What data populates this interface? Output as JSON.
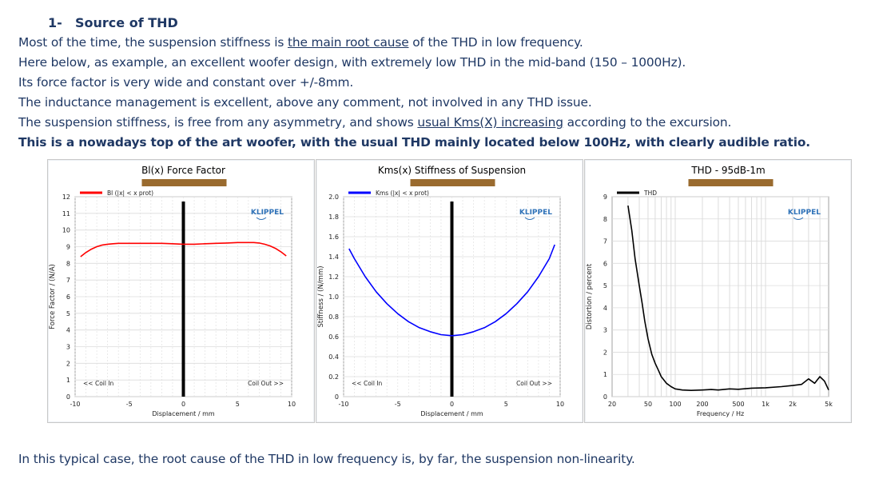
{
  "heading": {
    "number": "1-",
    "title": "Source of THD"
  },
  "paragraphs": {
    "p1_a": "Most of the time, the suspension stiffness is ",
    "p1_u": "the main root cause",
    "p1_b": " of the THD in low frequency.",
    "p2": "Here below, as example, an excellent woofer design, with extremely low THD in the mid-band (150 – 1000Hz).",
    "p3": "Its force factor is very wide and constant over +/-8mm.",
    "p4": "The inductance management is excellent, above any comment, not involved in any THD issue.",
    "p5_a": "The suspension stiffness, is free from any asymmetry, and shows ",
    "p5_u": "usual Kms(X) increasing",
    "p5_b": " according to the excursion.",
    "p6": "This is a nowadays top of the art woofer, with the usual THD mainly located below 100Hz, with clearly audible ratio."
  },
  "conclusion": "In this typical case, the root cause of the THD in low frequency is, by far, the suspension non-linearity.",
  "colors": {
    "text": "#1f3864",
    "bl": "#ff0000",
    "kms": "#0000ff",
    "thd": "#000000",
    "klippel": "#2f72b8",
    "redaction": "#9a6b2f"
  },
  "chart_data": [
    {
      "type": "line",
      "title": "Bl(x) Force Factor",
      "xlabel": "Displacement / mm",
      "ylabel": "Force Factor / (N/A)",
      "xlim": [
        -10,
        10
      ],
      "ylim": [
        0,
        12
      ],
      "xticks": [
        "-10",
        "-5",
        "0",
        "5",
        "10"
      ],
      "yticks": [
        "0",
        "1",
        "2",
        "3",
        "4",
        "5",
        "6",
        "7",
        "8",
        "9",
        "10",
        "11",
        "12"
      ],
      "brand": "KLIPPEL",
      "coil_in": "<< Coil In",
      "coil_out": "Coil Out >>",
      "series": [
        {
          "name": "Bl (|x| < x prot)",
          "x": [
            -9.5,
            -9,
            -8.5,
            -8,
            -7.5,
            -7,
            -6.5,
            -6,
            -5,
            -4,
            -3,
            -2,
            -1,
            0,
            1,
            2,
            3,
            4,
            5,
            6,
            6.5,
            7,
            7.5,
            8,
            8.5,
            9,
            9.5
          ],
          "y": [
            8.4,
            8.65,
            8.85,
            9.0,
            9.1,
            9.15,
            9.18,
            9.2,
            9.2,
            9.2,
            9.2,
            9.2,
            9.18,
            9.15,
            9.15,
            9.18,
            9.2,
            9.22,
            9.25,
            9.25,
            9.25,
            9.22,
            9.15,
            9.05,
            8.9,
            8.7,
            8.45
          ]
        }
      ]
    },
    {
      "type": "line",
      "title": "Kms(x) Stiffness of Suspension",
      "xlabel": "Displacement / mm",
      "ylabel": "Stiffness / (N/mm)",
      "xlim": [
        -10,
        10
      ],
      "ylim": [
        0,
        2.0
      ],
      "xticks": [
        "-10",
        "-5",
        "0",
        "5",
        "10"
      ],
      "yticks": [
        "0",
        "0.2",
        "0.4",
        "0.6",
        "0.8",
        "1.0",
        "1.2",
        "1.4",
        "1.6",
        "1.8",
        "2.0"
      ],
      "brand": "KLIPPEL",
      "coil_in": "<< Coil In",
      "coil_out": "Coil Out >>",
      "series": [
        {
          "name": "Kms (|x| < x prot)",
          "x": [
            -9.5,
            -9,
            -8,
            -7,
            -6,
            -5,
            -4,
            -3,
            -2,
            -1,
            0,
            1,
            2,
            3,
            4,
            5,
            6,
            7,
            8,
            9,
            9.5
          ],
          "y": [
            1.48,
            1.38,
            1.2,
            1.05,
            0.93,
            0.83,
            0.75,
            0.69,
            0.65,
            0.62,
            0.61,
            0.62,
            0.65,
            0.69,
            0.75,
            0.83,
            0.93,
            1.05,
            1.2,
            1.38,
            1.52
          ]
        }
      ]
    },
    {
      "type": "line",
      "title": "THD - 95dB-1m",
      "xlabel": "Frequency / Hz",
      "ylabel": "Distortion / percent",
      "xscale": "log",
      "xlim": [
        20,
        5000
      ],
      "ylim": [
        0,
        9
      ],
      "xticks": [
        "20",
        "50",
        "100",
        "200",
        "500",
        "1k",
        "2k",
        "5k"
      ],
      "yticks": [
        "0",
        "1",
        "2",
        "3",
        "4",
        "5",
        "6",
        "7",
        "8",
        "9"
      ],
      "brand": "KLIPPEL",
      "series": [
        {
          "name": "THD",
          "x": [
            30,
            33,
            36,
            40,
            43,
            46,
            50,
            55,
            60,
            65,
            70,
            80,
            90,
            100,
            120,
            150,
            200,
            250,
            300,
            400,
            500,
            700,
            1000,
            1500,
            2000,
            2500,
            3000,
            3500,
            4000,
            4500,
            5000
          ],
          "y": [
            8.6,
            7.5,
            6.2,
            5.0,
            4.2,
            3.4,
            2.6,
            1.9,
            1.5,
            1.2,
            0.9,
            0.6,
            0.45,
            0.35,
            0.3,
            0.28,
            0.3,
            0.32,
            0.3,
            0.35,
            0.33,
            0.38,
            0.4,
            0.45,
            0.5,
            0.55,
            0.8,
            0.6,
            0.9,
            0.7,
            0.3
          ]
        }
      ]
    }
  ]
}
